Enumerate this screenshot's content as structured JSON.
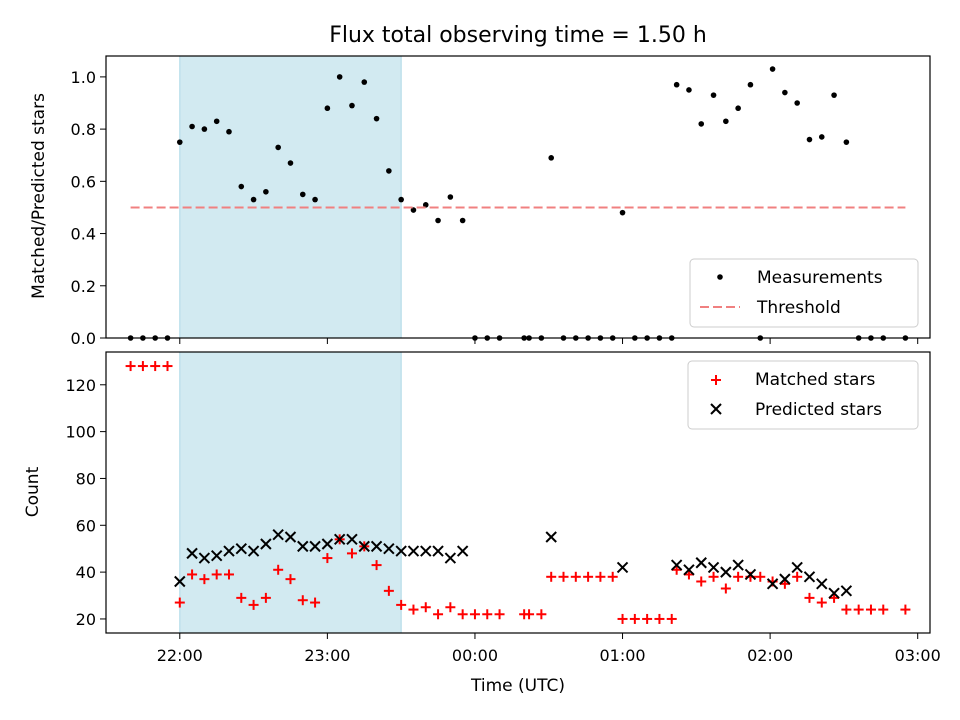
{
  "chart_data": [
    {
      "type": "scatter",
      "title": "Flux total observing time = 1.50 h",
      "xlabel": "",
      "ylabel": "Matched/Predicted stars",
      "xlim": [
        "21:30",
        "03:05"
      ],
      "ylim": [
        0.0,
        1.08
      ],
      "yticks": [
        "0.0",
        "0.2",
        "0.4",
        "0.6",
        "0.8",
        "1.0"
      ],
      "highlight_span": [
        "22:00",
        "23:30"
      ],
      "highlight_color": "#add8e6",
      "legend_position": "lower-right",
      "series": [
        {
          "name": "Measurements",
          "marker": "dot",
          "color": "#000000",
          "points": [
            [
              "21:40",
              0.0
            ],
            [
              "21:45",
              0.0
            ],
            [
              "21:50",
              0.0
            ],
            [
              "21:55",
              0.0
            ],
            [
              "22:00",
              0.75
            ],
            [
              "22:05",
              0.81
            ],
            [
              "22:10",
              0.8
            ],
            [
              "22:15",
              0.83
            ],
            [
              "22:20",
              0.79
            ],
            [
              "22:25",
              0.58
            ],
            [
              "22:30",
              0.53
            ],
            [
              "22:35",
              0.56
            ],
            [
              "22:40",
              0.73
            ],
            [
              "22:45",
              0.67
            ],
            [
              "22:50",
              0.55
            ],
            [
              "22:55",
              0.53
            ],
            [
              "23:00",
              0.88
            ],
            [
              "23:05",
              1.0
            ],
            [
              "23:10",
              0.89
            ],
            [
              "23:15",
              0.98
            ],
            [
              "23:20",
              0.84
            ],
            [
              "23:25",
              0.64
            ],
            [
              "23:30",
              0.53
            ],
            [
              "23:35",
              0.49
            ],
            [
              "23:40",
              0.51
            ],
            [
              "23:45",
              0.45
            ],
            [
              "23:50",
              0.54
            ],
            [
              "23:55",
              0.45
            ],
            [
              "00:00",
              0.0
            ],
            [
              "00:05",
              0.0
            ],
            [
              "00:10",
              0.0
            ],
            [
              "00:20",
              0.0
            ],
            [
              "00:22",
              0.0
            ],
            [
              "00:27",
              0.0
            ],
            [
              "00:31",
              0.69
            ],
            [
              "00:36",
              0.0
            ],
            [
              "00:41",
              0.0
            ],
            [
              "00:46",
              0.0
            ],
            [
              "00:51",
              0.0
            ],
            [
              "00:56",
              0.0
            ],
            [
              "01:00",
              0.48
            ],
            [
              "01:05",
              0.0
            ],
            [
              "01:10",
              0.0
            ],
            [
              "01:15",
              0.0
            ],
            [
              "01:20",
              0.0
            ],
            [
              "01:22",
              0.97
            ],
            [
              "01:27",
              0.95
            ],
            [
              "01:32",
              0.82
            ],
            [
              "01:37",
              0.93
            ],
            [
              "01:42",
              0.83
            ],
            [
              "01:47",
              0.88
            ],
            [
              "01:52",
              0.97
            ],
            [
              "01:56",
              0.0
            ],
            [
              "02:01",
              1.03
            ],
            [
              "02:06",
              0.94
            ],
            [
              "02:11",
              0.9
            ],
            [
              "02:16",
              0.76
            ],
            [
              "02:21",
              0.77
            ],
            [
              "02:26",
              0.93
            ],
            [
              "02:31",
              0.75
            ],
            [
              "02:36",
              0.0
            ],
            [
              "02:41",
              0.0
            ],
            [
              "02:46",
              0.0
            ],
            [
              "02:55",
              0.0
            ]
          ]
        },
        {
          "name": "Threshold",
          "marker": "dashed-line",
          "color": "#f08080",
          "points": [
            [
              "21:40",
              0.5
            ],
            [
              "02:55",
              0.5
            ]
          ]
        }
      ]
    },
    {
      "type": "scatter",
      "title": "",
      "xlabel": "Time (UTC)",
      "ylabel": "Count",
      "xlim": [
        "21:30",
        "03:05"
      ],
      "ylim": [
        14,
        134
      ],
      "yticks": [
        "20",
        "40",
        "60",
        "80",
        "100",
        "120"
      ],
      "xticks": [
        "22:00",
        "23:00",
        "00:00",
        "01:00",
        "02:00",
        "03:00"
      ],
      "highlight_span": [
        "22:00",
        "23:30"
      ],
      "highlight_color": "#add8e6",
      "legend_position": "upper-right",
      "series": [
        {
          "name": "Matched stars",
          "marker": "plus",
          "color": "#ff0000",
          "points": [
            [
              "21:40",
              128
            ],
            [
              "21:45",
              128
            ],
            [
              "21:50",
              128
            ],
            [
              "21:55",
              128
            ],
            [
              "22:00",
              27
            ],
            [
              "22:05",
              39
            ],
            [
              "22:10",
              37
            ],
            [
              "22:15",
              39
            ],
            [
              "22:20",
              39
            ],
            [
              "22:25",
              29
            ],
            [
              "22:30",
              26
            ],
            [
              "22:35",
              29
            ],
            [
              "22:40",
              41
            ],
            [
              "22:45",
              37
            ],
            [
              "22:50",
              28
            ],
            [
              "22:55",
              27
            ],
            [
              "23:00",
              46
            ],
            [
              "23:05",
              54
            ],
            [
              "23:10",
              48
            ],
            [
              "23:15",
              51
            ],
            [
              "23:20",
              43
            ],
            [
              "23:25",
              32
            ],
            [
              "23:30",
              26
            ],
            [
              "23:35",
              24
            ],
            [
              "23:40",
              25
            ],
            [
              "23:45",
              22
            ],
            [
              "23:50",
              25
            ],
            [
              "23:55",
              22
            ],
            [
              "00:00",
              22
            ],
            [
              "00:05",
              22
            ],
            [
              "00:10",
              22
            ],
            [
              "00:20",
              22
            ],
            [
              "00:22",
              22
            ],
            [
              "00:27",
              22
            ],
            [
              "00:31",
              38
            ],
            [
              "00:36",
              38
            ],
            [
              "00:41",
              38
            ],
            [
              "00:46",
              38
            ],
            [
              "00:51",
              38
            ],
            [
              "00:56",
              38
            ],
            [
              "01:00",
              20
            ],
            [
              "01:05",
              20
            ],
            [
              "01:10",
              20
            ],
            [
              "01:15",
              20
            ],
            [
              "01:20",
              20
            ],
            [
              "01:22",
              41
            ],
            [
              "01:27",
              39
            ],
            [
              "01:32",
              36
            ],
            [
              "01:37",
              38
            ],
            [
              "01:42",
              33
            ],
            [
              "01:47",
              38
            ],
            [
              "01:52",
              38
            ],
            [
              "01:56",
              38
            ],
            [
              "02:01",
              36
            ],
            [
              "02:06",
              35
            ],
            [
              "02:11",
              38
            ],
            [
              "02:16",
              29
            ],
            [
              "02:21",
              27
            ],
            [
              "02:26",
              29
            ],
            [
              "02:31",
              24
            ],
            [
              "02:36",
              24
            ],
            [
              "02:41",
              24
            ],
            [
              "02:46",
              24
            ],
            [
              "02:55",
              24
            ]
          ]
        },
        {
          "name": "Predicted stars",
          "marker": "x",
          "color": "#000000",
          "points": [
            [
              "22:00",
              36
            ],
            [
              "22:05",
              48
            ],
            [
              "22:10",
              46
            ],
            [
              "22:15",
              47
            ],
            [
              "22:20",
              49
            ],
            [
              "22:25",
              50
            ],
            [
              "22:30",
              49
            ],
            [
              "22:35",
              52
            ],
            [
              "22:40",
              56
            ],
            [
              "22:45",
              55
            ],
            [
              "22:50",
              51
            ],
            [
              "22:55",
              51
            ],
            [
              "23:00",
              52
            ],
            [
              "23:05",
              54
            ],
            [
              "23:10",
              54
            ],
            [
              "23:15",
              51
            ],
            [
              "23:20",
              51
            ],
            [
              "23:25",
              50
            ],
            [
              "23:30",
              49
            ],
            [
              "23:35",
              49
            ],
            [
              "23:40",
              49
            ],
            [
              "23:45",
              49
            ],
            [
              "23:50",
              46
            ],
            [
              "23:55",
              49
            ],
            [
              "00:31",
              55
            ],
            [
              "01:00",
              42
            ],
            [
              "01:22",
              43
            ],
            [
              "01:27",
              41
            ],
            [
              "01:32",
              44
            ],
            [
              "01:37",
              42
            ],
            [
              "01:42",
              40
            ],
            [
              "01:47",
              43
            ],
            [
              "01:52",
              39
            ],
            [
              "02:01",
              35
            ],
            [
              "02:06",
              37
            ],
            [
              "02:11",
              42
            ],
            [
              "02:16",
              38
            ],
            [
              "02:21",
              35
            ],
            [
              "02:26",
              31
            ],
            [
              "02:31",
              32
            ]
          ]
        }
      ]
    }
  ]
}
